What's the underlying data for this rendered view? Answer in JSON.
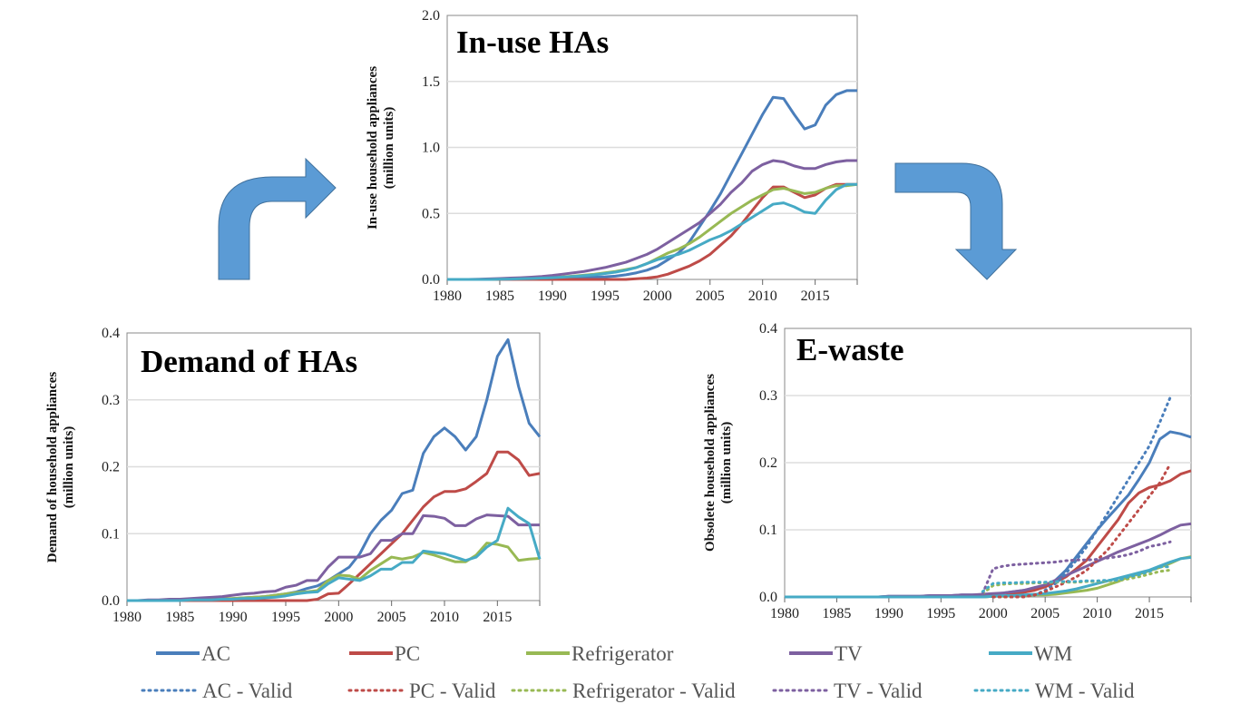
{
  "colors": {
    "AC": "#4a7ebb",
    "PC": "#be4b48",
    "Refrigerator": "#98b954",
    "TV": "#7d60a0",
    "WM": "#46aac5",
    "arrow": "#5b9bd5",
    "arrow_edge": "#41719c"
  },
  "legend": {
    "solid": [
      "AC",
      "PC",
      "Refrigerator",
      "TV",
      "WM"
    ],
    "dotted": [
      "AC - Valid",
      "PC - Valid",
      "Refrigerator - Valid",
      "TV - Valid",
      "WM - Valid"
    ]
  },
  "chart_data": [
    {
      "type": "line",
      "id": "inuse",
      "title": "In-use HAs",
      "ylabel_lines": [
        "In-use household appliances",
        "(million units)"
      ],
      "xlim": [
        1980,
        2019
      ],
      "ylim": [
        0,
        2.0
      ],
      "xticks": [
        "1980",
        "1985",
        "1990",
        "1995",
        "2000",
        "2005",
        "2010",
        "2015"
      ],
      "yticks": [
        "0.0",
        "0.5",
        "1.0",
        "1.5",
        "2.0"
      ],
      "grid": true,
      "start": 1980,
      "series": [
        {
          "name": "AC",
          "values": [
            0,
            0,
            0,
            0,
            0,
            0,
            0.002,
            0.003,
            0.005,
            0.007,
            0.009,
            0.011,
            0.013,
            0.015,
            0.018,
            0.02,
            0.025,
            0.035,
            0.05,
            0.07,
            0.1,
            0.15,
            0.2,
            0.28,
            0.4,
            0.52,
            0.65,
            0.8,
            0.95,
            1.1,
            1.25,
            1.38,
            1.37,
            1.25,
            1.14,
            1.17,
            1.32,
            1.4,
            1.43,
            1.43
          ]
        },
        {
          "name": "PC",
          "values": [
            0,
            0,
            0,
            0,
            0,
            0,
            0,
            0,
            0,
            0,
            0,
            0,
            0,
            0,
            0,
            0,
            0,
            0,
            0.005,
            0.01,
            0.02,
            0.04,
            0.07,
            0.1,
            0.14,
            0.19,
            0.26,
            0.33,
            0.42,
            0.52,
            0.62,
            0.7,
            0.7,
            0.66,
            0.62,
            0.64,
            0.69,
            0.72,
            0.72,
            0.72
          ]
        },
        {
          "name": "Refrigerator",
          "values": [
            0,
            0,
            0,
            0,
            0,
            0.003,
            0.004,
            0.006,
            0.008,
            0.011,
            0.015,
            0.02,
            0.025,
            0.032,
            0.04,
            0.05,
            0.06,
            0.075,
            0.09,
            0.12,
            0.16,
            0.2,
            0.23,
            0.27,
            0.32,
            0.38,
            0.44,
            0.5,
            0.55,
            0.6,
            0.64,
            0.68,
            0.69,
            0.67,
            0.65,
            0.66,
            0.69,
            0.71,
            0.71,
            0.72
          ]
        },
        {
          "name": "TV",
          "values": [
            0,
            0,
            0,
            0.002,
            0.004,
            0.007,
            0.01,
            0.013,
            0.017,
            0.022,
            0.03,
            0.04,
            0.05,
            0.06,
            0.075,
            0.09,
            0.11,
            0.13,
            0.16,
            0.19,
            0.23,
            0.28,
            0.33,
            0.38,
            0.43,
            0.5,
            0.57,
            0.66,
            0.73,
            0.82,
            0.87,
            0.9,
            0.89,
            0.86,
            0.84,
            0.84,
            0.87,
            0.89,
            0.9,
            0.9
          ]
        },
        {
          "name": "WM",
          "values": [
            0,
            0,
            0,
            0,
            0,
            0.002,
            0.003,
            0.005,
            0.007,
            0.01,
            0.013,
            0.017,
            0.022,
            0.028,
            0.035,
            0.045,
            0.055,
            0.07,
            0.09,
            0.12,
            0.15,
            0.17,
            0.19,
            0.22,
            0.26,
            0.3,
            0.33,
            0.37,
            0.42,
            0.47,
            0.52,
            0.57,
            0.58,
            0.55,
            0.51,
            0.5,
            0.6,
            0.68,
            0.72,
            0.72
          ]
        }
      ]
    },
    {
      "type": "line",
      "id": "demand",
      "title": "Demand of HAs",
      "ylabel_lines": [
        "Demand of household appliances",
        "(million units)"
      ],
      "xlim": [
        1980,
        2019
      ],
      "ylim": [
        0,
        0.4
      ],
      "xticks": [
        "1980",
        "1985",
        "1990",
        "1995",
        "2000",
        "2005",
        "2010",
        "2015"
      ],
      "yticks": [
        "0.0",
        "0.1",
        "0.2",
        "0.3",
        "0.4"
      ],
      "grid": true,
      "start": 1980,
      "series": [
        {
          "name": "AC",
          "values": [
            0,
            0,
            0,
            0,
            0,
            0,
            0,
            0,
            0.001,
            0.002,
            0.003,
            0.004,
            0.005,
            0.006,
            0.008,
            0.01,
            0.013,
            0.018,
            0.022,
            0.03,
            0.04,
            0.05,
            0.07,
            0.1,
            0.12,
            0.135,
            0.16,
            0.165,
            0.22,
            0.245,
            0.258,
            0.245,
            0.225,
            0.245,
            0.3,
            0.365,
            0.39,
            0.32,
            0.265,
            0.245
          ]
        },
        {
          "name": "PC",
          "values": [
            0,
            0,
            0,
            0,
            0,
            0,
            0,
            0,
            0,
            0,
            0,
            0,
            0,
            0,
            0,
            0,
            0,
            0,
            0.002,
            0.01,
            0.011,
            0.025,
            0.04,
            0.055,
            0.07,
            0.085,
            0.1,
            0.12,
            0.14,
            0.155,
            0.163,
            0.163,
            0.167,
            0.178,
            0.19,
            0.222,
            0.222,
            0.21,
            0.187,
            0.19
          ]
        },
        {
          "name": "Refrigerator",
          "values": [
            0,
            0,
            0,
            0,
            0,
            0.001,
            0.001,
            0.002,
            0.002,
            0.003,
            0.003,
            0.004,
            0.005,
            0.006,
            0.008,
            0.01,
            0.012,
            0.013,
            0.015,
            0.03,
            0.038,
            0.037,
            0.032,
            0.045,
            0.055,
            0.065,
            0.062,
            0.065,
            0.072,
            0.068,
            0.063,
            0.058,
            0.058,
            0.068,
            0.086,
            0.084,
            0.08,
            0.06,
            0.062,
            0.063
          ]
        },
        {
          "name": "TV",
          "values": [
            0,
            0,
            0.001,
            0.001,
            0.002,
            0.002,
            0.003,
            0.004,
            0.005,
            0.006,
            0.008,
            0.01,
            0.011,
            0.013,
            0.014,
            0.02,
            0.023,
            0.03,
            0.03,
            0.05,
            0.065,
            0.065,
            0.065,
            0.07,
            0.09,
            0.09,
            0.1,
            0.1,
            0.127,
            0.126,
            0.123,
            0.112,
            0.112,
            0.122,
            0.128,
            0.127,
            0.126,
            0.113,
            0.113,
            0.113
          ]
        },
        {
          "name": "WM",
          "values": [
            0,
            0,
            0,
            0,
            0,
            0,
            0.001,
            0.001,
            0.001,
            0.002,
            0.002,
            0.003,
            0.003,
            0.004,
            0.005,
            0.007,
            0.01,
            0.012,
            0.013,
            0.025,
            0.034,
            0.032,
            0.03,
            0.037,
            0.047,
            0.047,
            0.057,
            0.057,
            0.074,
            0.072,
            0.07,
            0.065,
            0.06,
            0.065,
            0.08,
            0.09,
            0.138,
            0.125,
            0.115,
            0.062
          ]
        }
      ]
    },
    {
      "type": "line",
      "id": "ewaste",
      "title": "E-waste",
      "ylabel_lines": [
        "Obsolete household appliances",
        "(million units)"
      ],
      "xlim": [
        1980,
        2019
      ],
      "ylim": [
        0,
        0.4
      ],
      "xticks": [
        "1980",
        "1985",
        "1990",
        "1995",
        "2000",
        "2005",
        "2010",
        "2015"
      ],
      "yticks": [
        "0.0",
        "0.1",
        "0.2",
        "0.3",
        "0.4"
      ],
      "grid": true,
      "start": 1980,
      "series": [
        {
          "name": "AC",
          "values": [
            0,
            0,
            0,
            0,
            0,
            0,
            0,
            0,
            0,
            0,
            0.001,
            0.001,
            0.001,
            0.001,
            0.002,
            0.002,
            0.002,
            0.003,
            0.003,
            0.003,
            0.004,
            0.006,
            0.008,
            0.01,
            0.012,
            0.016,
            0.025,
            0.04,
            0.06,
            0.08,
            0.1,
            0.118,
            0.135,
            0.152,
            0.175,
            0.2,
            0.235,
            0.246,
            0.243,
            0.238
          ]
        },
        {
          "name": "PC",
          "values": [
            0,
            0,
            0,
            0,
            0,
            0,
            0,
            0,
            0,
            0,
            0,
            0,
            0,
            0,
            0,
            0,
            0,
            0,
            0,
            0,
            0.001,
            0.002,
            0.004,
            0.007,
            0.01,
            0.015,
            0.022,
            0.03,
            0.042,
            0.055,
            0.075,
            0.095,
            0.115,
            0.14,
            0.155,
            0.163,
            0.167,
            0.173,
            0.183,
            0.188
          ]
        },
        {
          "name": "Refrigerator",
          "values": [
            0,
            0,
            0,
            0,
            0,
            0,
            0,
            0,
            0,
            0,
            0,
            0,
            0,
            0,
            0,
            0,
            0,
            0,
            0,
            0,
            0.001,
            0.001,
            0.002,
            0.002,
            0.003,
            0.003,
            0.004,
            0.006,
            0.008,
            0.01,
            0.013,
            0.018,
            0.023,
            0.03,
            0.034,
            0.039,
            0.044,
            0.05,
            0.057,
            0.06
          ]
        },
        {
          "name": "TV",
          "values": [
            0,
            0,
            0,
            0,
            0,
            0,
            0,
            0,
            0,
            0,
            0.001,
            0.001,
            0.001,
            0.001,
            0.002,
            0.002,
            0.002,
            0.003,
            0.003,
            0.004,
            0.005,
            0.006,
            0.008,
            0.01,
            0.014,
            0.018,
            0.025,
            0.032,
            0.039,
            0.046,
            0.053,
            0.06,
            0.067,
            0.073,
            0.079,
            0.085,
            0.092,
            0.1,
            0.107,
            0.109
          ]
        },
        {
          "name": "WM",
          "values": [
            0,
            0,
            0,
            0,
            0,
            0,
            0,
            0,
            0,
            0,
            0,
            0,
            0,
            0,
            0,
            0,
            0,
            0,
            0,
            0,
            0.001,
            0.002,
            0.002,
            0.003,
            0.004,
            0.005,
            0.007,
            0.009,
            0.012,
            0.016,
            0.02,
            0.024,
            0.028,
            0.032,
            0.036,
            0.04,
            0.046,
            0.052,
            0.057,
            0.059
          ]
        }
      ],
      "valid_series": [
        {
          "name": "AC - Valid",
          "start": 2000,
          "values": [
            0,
            0,
            0,
            0.001,
            0.003,
            0.01,
            0.02,
            0.035,
            0.055,
            0.075,
            0.1,
            0.125,
            0.15,
            0.175,
            0.2,
            0.225,
            0.26,
            0.297
          ]
        },
        {
          "name": "PC - Valid",
          "start": 2000,
          "values": [
            0,
            0,
            0,
            0,
            0.003,
            0.008,
            0.015,
            0.022,
            0.03,
            0.04,
            0.055,
            0.07,
            0.09,
            0.11,
            0.13,
            0.15,
            0.17,
            0.198
          ]
        },
        {
          "name": "Refrigerator - Valid",
          "start": 1999,
          "values": [
            0.005,
            0.017,
            0.019,
            0.02,
            0.02,
            0.021,
            0.021,
            0.022,
            0.022,
            0.022,
            0.023,
            0.023,
            0.024,
            0.024,
            0.027,
            0.03,
            0.034,
            0.038,
            0.04
          ]
        },
        {
          "name": "TV - Valid",
          "start": 1999,
          "values": [
            0.005,
            0.042,
            0.046,
            0.048,
            0.049,
            0.05,
            0.051,
            0.052,
            0.054,
            0.055,
            0.055,
            0.056,
            0.058,
            0.06,
            0.063,
            0.068,
            0.075,
            0.078,
            0.082
          ]
        },
        {
          "name": "WM - Valid",
          "start": 1999,
          "values": [
            0.008,
            0.02,
            0.021,
            0.021,
            0.022,
            0.022,
            0.022,
            0.023,
            0.023,
            0.023,
            0.024,
            0.024,
            0.025,
            0.025,
            0.03,
            0.033,
            0.038,
            0.045,
            0.045
          ]
        }
      ]
    }
  ]
}
